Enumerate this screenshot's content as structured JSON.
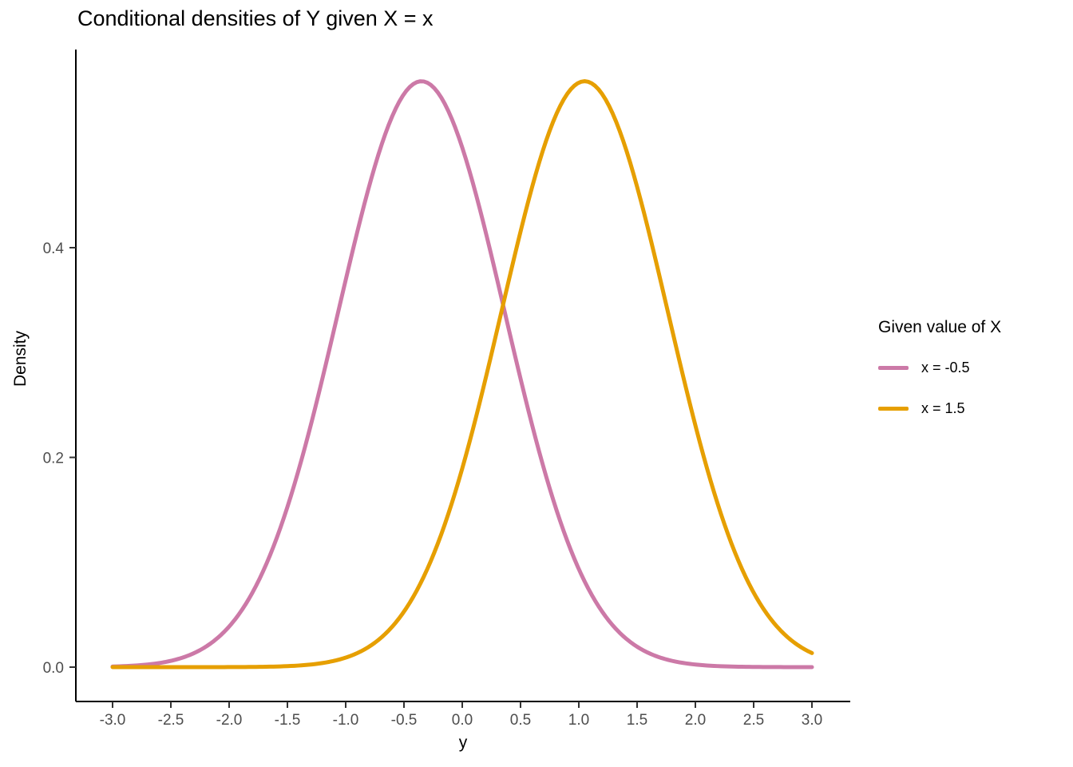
{
  "chart_data": {
    "type": "line",
    "title": "Conditional densities of Y given X = x",
    "xlabel": "y",
    "ylabel": "Density",
    "grid": false,
    "xlim": [
      -3,
      3
    ],
    "ylim": [
      0,
      0.59
    ],
    "x_ticks": [
      {
        "value": -3.0,
        "label": "-3.0"
      },
      {
        "value": -2.5,
        "label": "-2.5"
      },
      {
        "value": -2.0,
        "label": "-2.0"
      },
      {
        "value": -1.5,
        "label": "-1.5"
      },
      {
        "value": -1.0,
        "label": "-1.0"
      },
      {
        "value": -0.5,
        "label": "-0.5"
      },
      {
        "value": 0.0,
        "label": "0.0"
      },
      {
        "value": 0.5,
        "label": "0.5"
      },
      {
        "value": 1.0,
        "label": "1.0"
      },
      {
        "value": 1.5,
        "label": "1.5"
      },
      {
        "value": 2.0,
        "label": "2.0"
      },
      {
        "value": 2.5,
        "label": "2.5"
      },
      {
        "value": 3.0,
        "label": "3.0"
      }
    ],
    "y_ticks": [
      {
        "value": 0.0,
        "label": "0.0"
      },
      {
        "value": 0.2,
        "label": "0.2"
      },
      {
        "value": 0.4,
        "label": "0.4"
      }
    ],
    "legend": {
      "title": "Given value of X",
      "position": "right"
    },
    "series": [
      {
        "name": "x = -0.5",
        "color": "#CC79A7",
        "distribution": "normal",
        "mean": -0.35,
        "sd": 0.714,
        "peak_density": 0.559,
        "x": [
          -3.0,
          -2.5,
          -2.0,
          -1.5,
          -1.0,
          -0.5,
          0.0,
          0.5,
          1.0,
          1.5,
          2.0,
          2.5,
          3.0
        ],
        "y": [
          0.0006,
          0.006,
          0.0389,
          0.1529,
          0.3694,
          0.5468,
          0.4957,
          0.2752,
          0.0936,
          0.0195,
          0.0025,
          0.0002,
          0.0
        ]
      },
      {
        "name": "x = 1.5",
        "color": "#E69F00",
        "distribution": "normal",
        "mean": 1.05,
        "sd": 0.714,
        "peak_density": 0.559,
        "x": [
          -3.0,
          -2.5,
          -2.0,
          -1.5,
          -1.0,
          -0.5,
          0.0,
          0.5,
          1.0,
          1.5,
          2.0,
          2.5,
          3.0
        ],
        "y": [
          0.0,
          0.0,
          0.0001,
          0.001,
          0.0091,
          0.053,
          0.1897,
          0.4156,
          0.5576,
          0.4584,
          0.2308,
          0.0712,
          0.0135
        ]
      }
    ]
  }
}
